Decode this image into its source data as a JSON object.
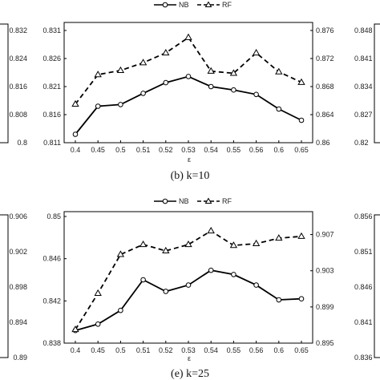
{
  "chart_data": [
    {
      "type": "line",
      "caption": "(b) k=10",
      "xlabel": "ε",
      "categories": [
        "0.4",
        "0.45",
        "0.5",
        "0.51",
        "0.52",
        "0.53",
        "0.54",
        "0.55",
        "0.56",
        "0.6",
        "0.65"
      ],
      "left_axis": {
        "ticks": [
          "0.811",
          "0.816",
          "0.821",
          "0.826",
          "0.831"
        ],
        "ylim": [
          0.811,
          0.831
        ]
      },
      "right_axis": {
        "ticks": [
          "0.86",
          "0.864",
          "0.868",
          "0.872",
          "0.876"
        ],
        "ylim": [
          0.86,
          0.876
        ]
      },
      "outer_left_axis": {
        "ticks": [
          "0.832",
          "0.824",
          "0.816",
          "0.808",
          "0.8"
        ]
      },
      "outer_right_axis": {
        "ticks": [
          "0.848",
          "0.841",
          "0.834",
          "0.827",
          "0.82"
        ]
      },
      "series": [
        {
          "name": "NB",
          "axis": "left",
          "marker": "circle",
          "style": "solid",
          "values": [
            0.8125,
            0.8175,
            0.8178,
            0.8198,
            0.8217,
            0.8228,
            0.821,
            0.8204,
            0.8196,
            0.817,
            0.815
          ]
        },
        {
          "name": "RF",
          "axis": "right",
          "marker": "triangle",
          "style": "dashed",
          "values": [
            0.8655,
            0.8697,
            0.8703,
            0.8714,
            0.8728,
            0.875,
            0.8702,
            0.8699,
            0.8728,
            0.8701,
            0.8686
          ]
        }
      ],
      "legend_position": "top-center"
    },
    {
      "type": "line",
      "caption": "(e) k=25",
      "xlabel": "ε",
      "categories": [
        "0.4",
        "0.45",
        "0.5",
        "0.51",
        "0.52",
        "0.53",
        "0.54",
        "0.55",
        "0.56",
        "0.6",
        "0.65"
      ],
      "left_axis": {
        "ticks": [
          "0.838",
          "0.842",
          "0.846",
          "0.85"
        ],
        "ylim": [
          0.838,
          0.85
        ]
      },
      "right_axis": {
        "ticks": [
          "0.895",
          "0.899",
          "0.903",
          "0.907"
        ],
        "ylim": [
          0.895,
          0.909
        ]
      },
      "outer_left_axis": {
        "ticks": [
          "0.906",
          "0.902",
          "0.898",
          "0.894",
          "0.89"
        ]
      },
      "outer_right_axis": {
        "ticks": [
          "0.856",
          "0.851",
          "0.846",
          "0.841",
          "0.836"
        ]
      },
      "series": [
        {
          "name": "NB",
          "axis": "left",
          "marker": "circle",
          "style": "solid",
          "values": [
            0.8392,
            0.8398,
            0.8411,
            0.844,
            0.8429,
            0.8435,
            0.8449,
            0.8445,
            0.8435,
            0.8421,
            0.8422
          ]
        },
        {
          "name": "RF",
          "axis": "right",
          "marker": "triangle",
          "style": "dashed",
          "values": [
            0.8965,
            0.9005,
            0.9048,
            0.9059,
            0.9052,
            0.9059,
            0.9074,
            0.9058,
            0.906,
            0.9066,
            0.9068
          ]
        }
      ],
      "legend_position": "top-center"
    }
  ]
}
